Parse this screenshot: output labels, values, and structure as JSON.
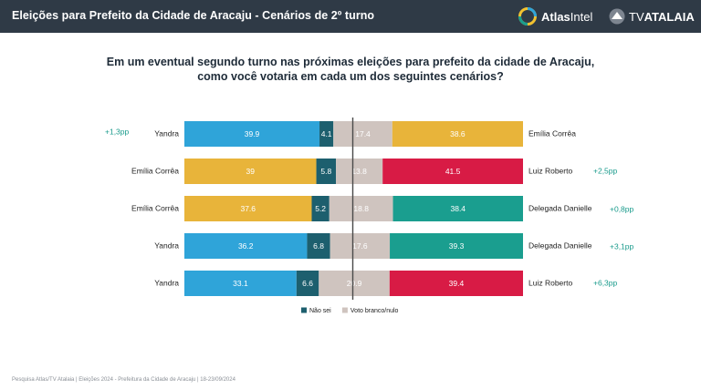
{
  "header": {
    "title": "Eleições para Prefeito da Cidade de Aracaju - Cenários de 2º turno",
    "logo_atlas_bold": "Atlas",
    "logo_atlas_light": "Intel",
    "logo_tv_light": "TV",
    "logo_tv_bold": "ATALAIA"
  },
  "question": {
    "line1": "Em um eventual segundo turno nas próximas eleições para prefeito da cidade de Aracaju,",
    "line2": "como você votaria em cada um dos seguintes cenários?"
  },
  "colors": {
    "header_bg": "#2f3a46",
    "text_dark": "#222222",
    "delta_green": "#1a9b8c",
    "axis_line": "#4a4a4a",
    "yandra": "#2fa4d9",
    "emilia": "#e8b43a",
    "luiz": "#d81b45",
    "danielle": "#1a9e8f",
    "nao_sei": "#1d5f6e",
    "branco": "#cfc4bf"
  },
  "chart_data": {
    "type": "bar",
    "orientation": "horizontal",
    "stacked": true,
    "segment_order": [
      "left",
      "nao_sei",
      "branco",
      "right"
    ],
    "rows": [
      {
        "left": "Yandra",
        "left_value": 39.9,
        "nao_sei": 4.1,
        "branco": 17.4,
        "right": "Emília Corrêa",
        "right_value": 38.6,
        "delta": "+1,3pp",
        "delta_side": "left"
      },
      {
        "left": "Emília Corrêa",
        "left_value": 39,
        "nao_sei": 5.8,
        "branco": 13.8,
        "right": "Luiz Roberto",
        "right_value": 41.5,
        "delta": "+2,5pp",
        "delta_side": "right"
      },
      {
        "left": "Emília Corrêa",
        "left_value": 37.6,
        "nao_sei": 5.2,
        "branco": 18.8,
        "right": "Delegada Danielle",
        "right_value": 38.4,
        "delta": "+0,8pp",
        "delta_side": "right"
      },
      {
        "left": "Yandra",
        "left_value": 36.2,
        "nao_sei": 6.8,
        "branco": 17.6,
        "right": "Delegada Danielle",
        "right_value": 39.3,
        "delta": "+3,1pp",
        "delta_side": "right"
      },
      {
        "left": "Yandra",
        "left_value": 33.1,
        "nao_sei": 6.6,
        "branco": 20.9,
        "right": "Luiz Roberto",
        "right_value": 39.4,
        "delta": "+6,3pp",
        "delta_side": "right"
      }
    ],
    "candidate_colors": {
      "Yandra": "#2fa4d9",
      "Emília Corrêa": "#e8b43a",
      "Luiz Roberto": "#d81b45",
      "Delegada Danielle": "#1a9e8f"
    },
    "legend": [
      {
        "key": "nao_sei",
        "label": "Não sei"
      },
      {
        "key": "branco",
        "label": "Voto branco/nulo"
      }
    ],
    "legend_position": "bottom"
  },
  "footer": {
    "text": "Pesquisa Atlas/TV Atalaia  |  Eleições 2024 - Prefeitura da Cidade de Aracaju  |  18-23/09/2024"
  }
}
